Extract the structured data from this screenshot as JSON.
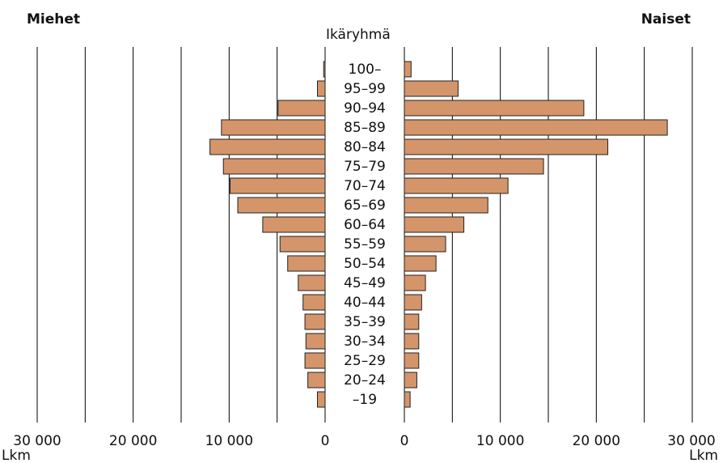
{
  "chart_data": {
    "type": "bar",
    "subtype": "population-pyramid",
    "left_title": "Miehet",
    "right_title": "Naiset",
    "center_title": "Ikäryhmä",
    "unit_label": "Lkm",
    "categories": [
      "100–",
      "95–99",
      "90–94",
      "85–89",
      "80–84",
      "75–79",
      "70–74",
      "65–69",
      "60–64",
      "55–59",
      "50–54",
      "45–49",
      "40–44",
      "35–39",
      "30–34",
      "25–29",
      "20–24",
      "–19"
    ],
    "series": [
      {
        "name": "Miehet",
        "values": [
          150,
          800,
          4900,
          10800,
          12000,
          10600,
          9900,
          9100,
          6500,
          4700,
          3900,
          2800,
          2300,
          2100,
          2000,
          2100,
          1800,
          800
        ]
      },
      {
        "name": "Naiset",
        "values": [
          700,
          5600,
          18700,
          27400,
          21200,
          14500,
          10800,
          8700,
          6200,
          4300,
          3300,
          2200,
          1800,
          1500,
          1500,
          1500,
          1300,
          600
        ]
      }
    ],
    "x_range": [
      0,
      30000
    ],
    "x_ticks": [
      0,
      10000,
      20000,
      30000
    ],
    "x_tick_labels": [
      "0",
      "10 000",
      "20 000",
      "30 000"
    ],
    "colors": {
      "bar": "#D4956A",
      "bar_stroke": "#222222",
      "grid": "#000000"
    }
  }
}
